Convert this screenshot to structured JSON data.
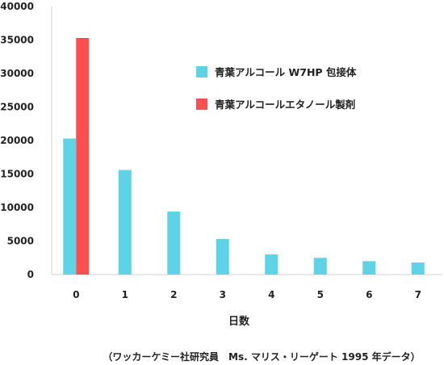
{
  "chart_data": {
    "type": "bar",
    "categories": [
      "0",
      "1",
      "2",
      "3",
      "4",
      "5",
      "6",
      "7"
    ],
    "series": [
      {
        "name": "青葉アルコール W7HP 包接体",
        "color": "#5fd3e6",
        "values": [
          20300,
          15600,
          9400,
          5300,
          3000,
          2500,
          2000,
          1800
        ]
      },
      {
        "name": "青葉アルコールエタノール製剤",
        "color": "#f85050",
        "values": [
          35300,
          null,
          null,
          null,
          null,
          null,
          null,
          null
        ]
      }
    ],
    "yticks": [
      0,
      5000,
      10000,
      15000,
      20000,
      25000,
      30000,
      35000,
      40000
    ],
    "ylim": [
      0,
      40000
    ],
    "xlabel": "日数",
    "ylabel": "",
    "legend_position": "upper-right",
    "grid": false,
    "source_note": "（ワッカーケミー社研究員　Ms. マリス・リーゲート 1995 年データ）"
  }
}
